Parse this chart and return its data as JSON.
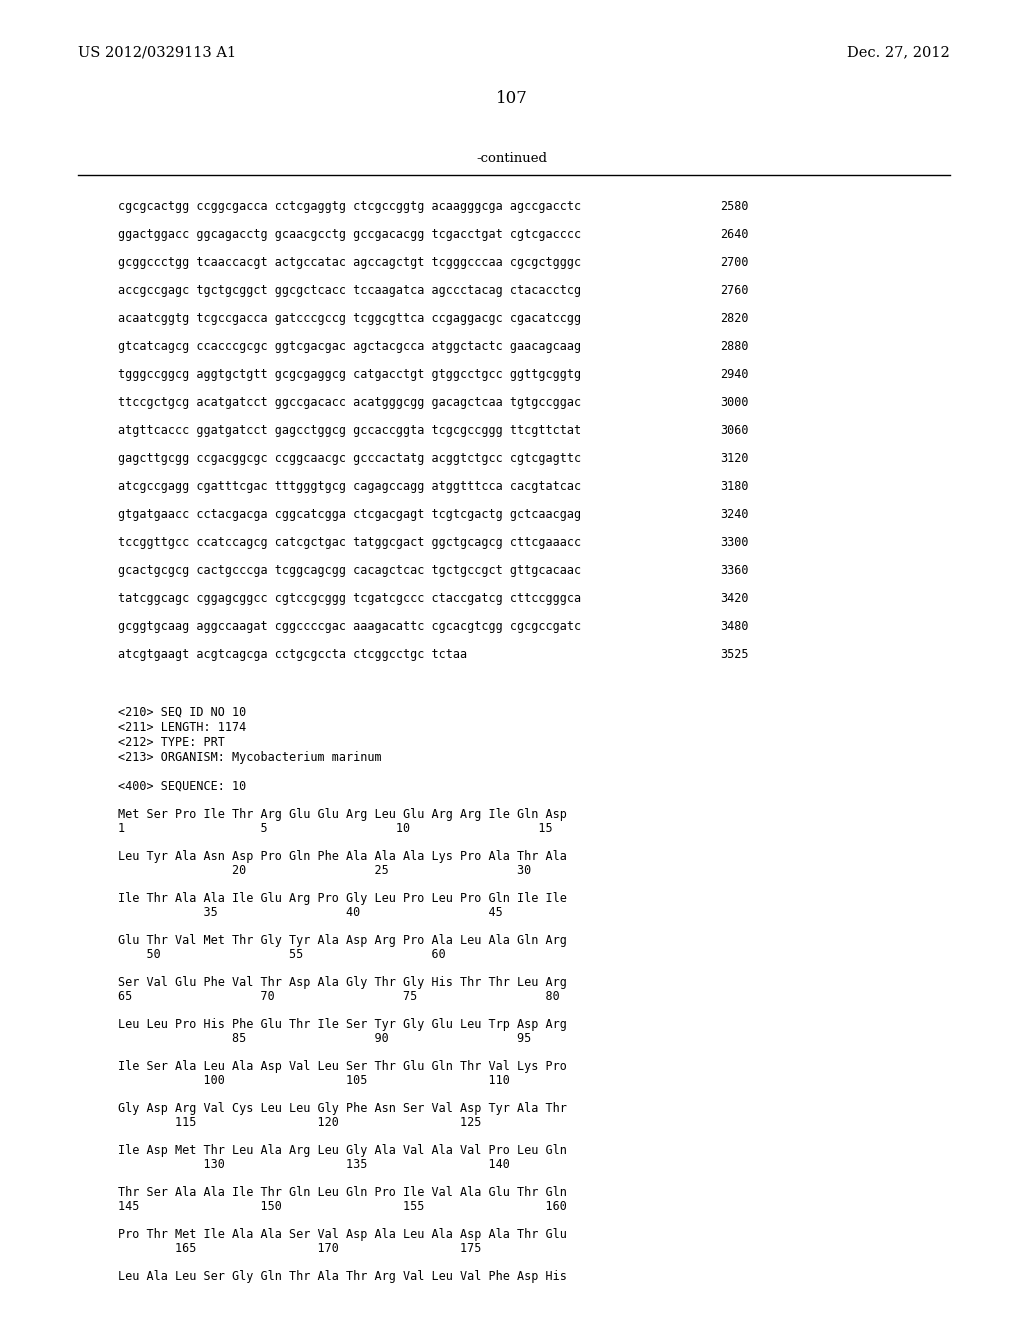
{
  "header_left": "US 2012/0329113 A1",
  "header_right": "Dec. 27, 2012",
  "page_number": "107",
  "continued_label": "-continued",
  "background_color": "#ffffff",
  "text_color": "#000000",
  "sequence_lines": [
    {
      "seq": "cgcgcactgg ccggcgacca cctcgaggtg ctcgccggtg acaagggcga agccgacctc",
      "num": "2580"
    },
    {
      "seq": "ggactggacc ggcagacctg gcaacgcctg gccgacacgg tcgacctgat cgtcgacccc",
      "num": "2640"
    },
    {
      "seq": "gcggccctgg tcaaccacgt actgccatac agccagctgt tcgggcccaa cgcgctgggc",
      "num": "2700"
    },
    {
      "seq": "accgccgagc tgctgcggct ggcgctcacc tccaagatca agccctacag ctacacctcg",
      "num": "2760"
    },
    {
      "seq": "acaatcggtg tcgccgacca gatcccgccg tcggcgttca ccgaggacgc cgacatccgg",
      "num": "2820"
    },
    {
      "seq": "gtcatcagcg ccacccgcgc ggtcgacgac agctacgcca atggctactc gaacagcaag",
      "num": "2880"
    },
    {
      "seq": "tgggccggcg aggtgctgtt gcgcgaggcg catgacctgt gtggcctgcc ggttgcggtg",
      "num": "2940"
    },
    {
      "seq": "ttccgctgcg acatgatcct ggccgacacc acatgggcgg gacagctcaa tgtgccggac",
      "num": "3000"
    },
    {
      "seq": "atgttcaccc ggatgatcct gagcctggcg gccaccggta tcgcgccggg ttcgttctat",
      "num": "3060"
    },
    {
      "seq": "gagcttgcgg ccgacggcgc ccggcaacgc gcccactatg acggtctgcc cgtcgagttc",
      "num": "3120"
    },
    {
      "seq": "atcgccgagg cgatttcgac tttgggtgcg cagagccagg atggtttcca cacgtatcac",
      "num": "3180"
    },
    {
      "seq": "gtgatgaacc cctacgacga cggcatcgga ctcgacgagt tcgtcgactg gctcaacgag",
      "num": "3240"
    },
    {
      "seq": "tccggttgcc ccatccagcg catcgctgac tatggcgact ggctgcagcg cttcgaaacc",
      "num": "3300"
    },
    {
      "seq": "gcactgcgcg cactgcccga tcggcagcgg cacagctcac tgctgccgct gttgcacaac",
      "num": "3360"
    },
    {
      "seq": "tatcggcagc cggagcggcc cgtccgcggg tcgatcgccc ctaccgatcg cttccgggca",
      "num": "3420"
    },
    {
      "seq": "gcggtgcaag aggccaagat cggccccgac aaagacattc cgcacgtcgg cgcgccgatc",
      "num": "3480"
    },
    {
      "seq": "atcgtgaagt acgtcagcga cctgcgccta ctcggcctgc tctaa",
      "num": "3525"
    }
  ],
  "metadata_lines": [
    "<210> SEQ ID NO 10",
    "<211> LENGTH: 1174",
    "<212> TYPE: PRT",
    "<213> ORGANISM: Mycobacterium marinum"
  ],
  "sequence_label": "<400> SEQUENCE: 10",
  "protein_blocks": [
    {
      "aa": "Met Ser Pro Ile Thr Arg Glu Glu Arg Leu Glu Arg Arg Ile Gln Asp",
      "nums": "1                   5                  10                  15"
    },
    {
      "aa": "Leu Tyr Ala Asn Asp Pro Gln Phe Ala Ala Ala Lys Pro Ala Thr Ala",
      "nums": "                20                  25                  30"
    },
    {
      "aa": "Ile Thr Ala Ala Ile Glu Arg Pro Gly Leu Pro Leu Pro Gln Ile Ile",
      "nums": "            35                  40                  45"
    },
    {
      "aa": "Glu Thr Val Met Thr Gly Tyr Ala Asp Arg Pro Ala Leu Ala Gln Arg",
      "nums": "    50                  55                  60"
    },
    {
      "aa": "Ser Val Glu Phe Val Thr Asp Ala Gly Thr Gly His Thr Thr Leu Arg",
      "nums": "65                  70                  75                  80"
    },
    {
      "aa": "Leu Leu Pro His Phe Glu Thr Ile Ser Tyr Gly Glu Leu Trp Asp Arg",
      "nums": "                85                  90                  95"
    },
    {
      "aa": "Ile Ser Ala Leu Ala Asp Val Leu Ser Thr Glu Gln Thr Val Lys Pro",
      "nums": "            100                 105                 110"
    },
    {
      "aa": "Gly Asp Arg Val Cys Leu Leu Gly Phe Asn Ser Val Asp Tyr Ala Thr",
      "nums": "        115                 120                 125"
    },
    {
      "aa": "Ile Asp Met Thr Leu Ala Arg Leu Gly Ala Val Ala Val Pro Leu Gln",
      "nums": "            130                 135                 140"
    },
    {
      "aa": "Thr Ser Ala Ala Ile Thr Gln Leu Gln Pro Ile Val Ala Glu Thr Gln",
      "nums": "145                 150                 155                 160"
    },
    {
      "aa": "Pro Thr Met Ile Ala Ala Ser Val Asp Ala Leu Ala Asp Ala Thr Glu",
      "nums": "        165                 170                 175"
    },
    {
      "aa": "Leu Ala Leu Ser Gly Gln Thr Ala Thr Arg Val Leu Val Phe Asp His",
      "nums": ""
    }
  ]
}
